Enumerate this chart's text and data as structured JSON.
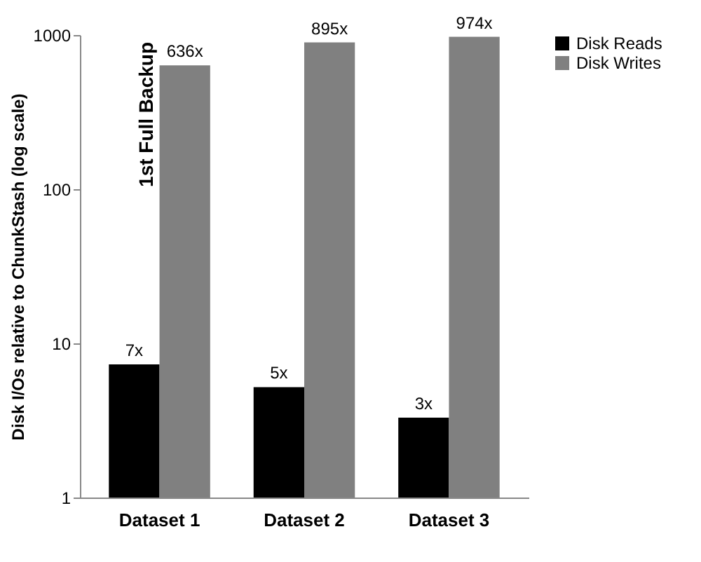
{
  "chart_data": {
    "type": "bar",
    "ylabel": "Disk I/Os relative to ChunkStash (log scale)",
    "categories": [
      "Dataset 1",
      "Dataset 2",
      "Dataset 3"
    ],
    "series": [
      {
        "name": "Disk Reads",
        "color": "#000000",
        "values": [
          7.3,
          5.2,
          3.3
        ],
        "value_labels": [
          "7x",
          "5x",
          "3x"
        ]
      },
      {
        "name": "Disk Writes",
        "color": "#808080",
        "values": [
          636,
          895,
          974
        ],
        "value_labels": [
          "636x",
          "895x",
          "974x"
        ]
      }
    ],
    "log": "y",
    "ylim": [
      1,
      1000
    ],
    "yticks": [
      1,
      10,
      100,
      1000
    ],
    "legend": "right",
    "annotations": [
      "1st Full Backup"
    ]
  }
}
